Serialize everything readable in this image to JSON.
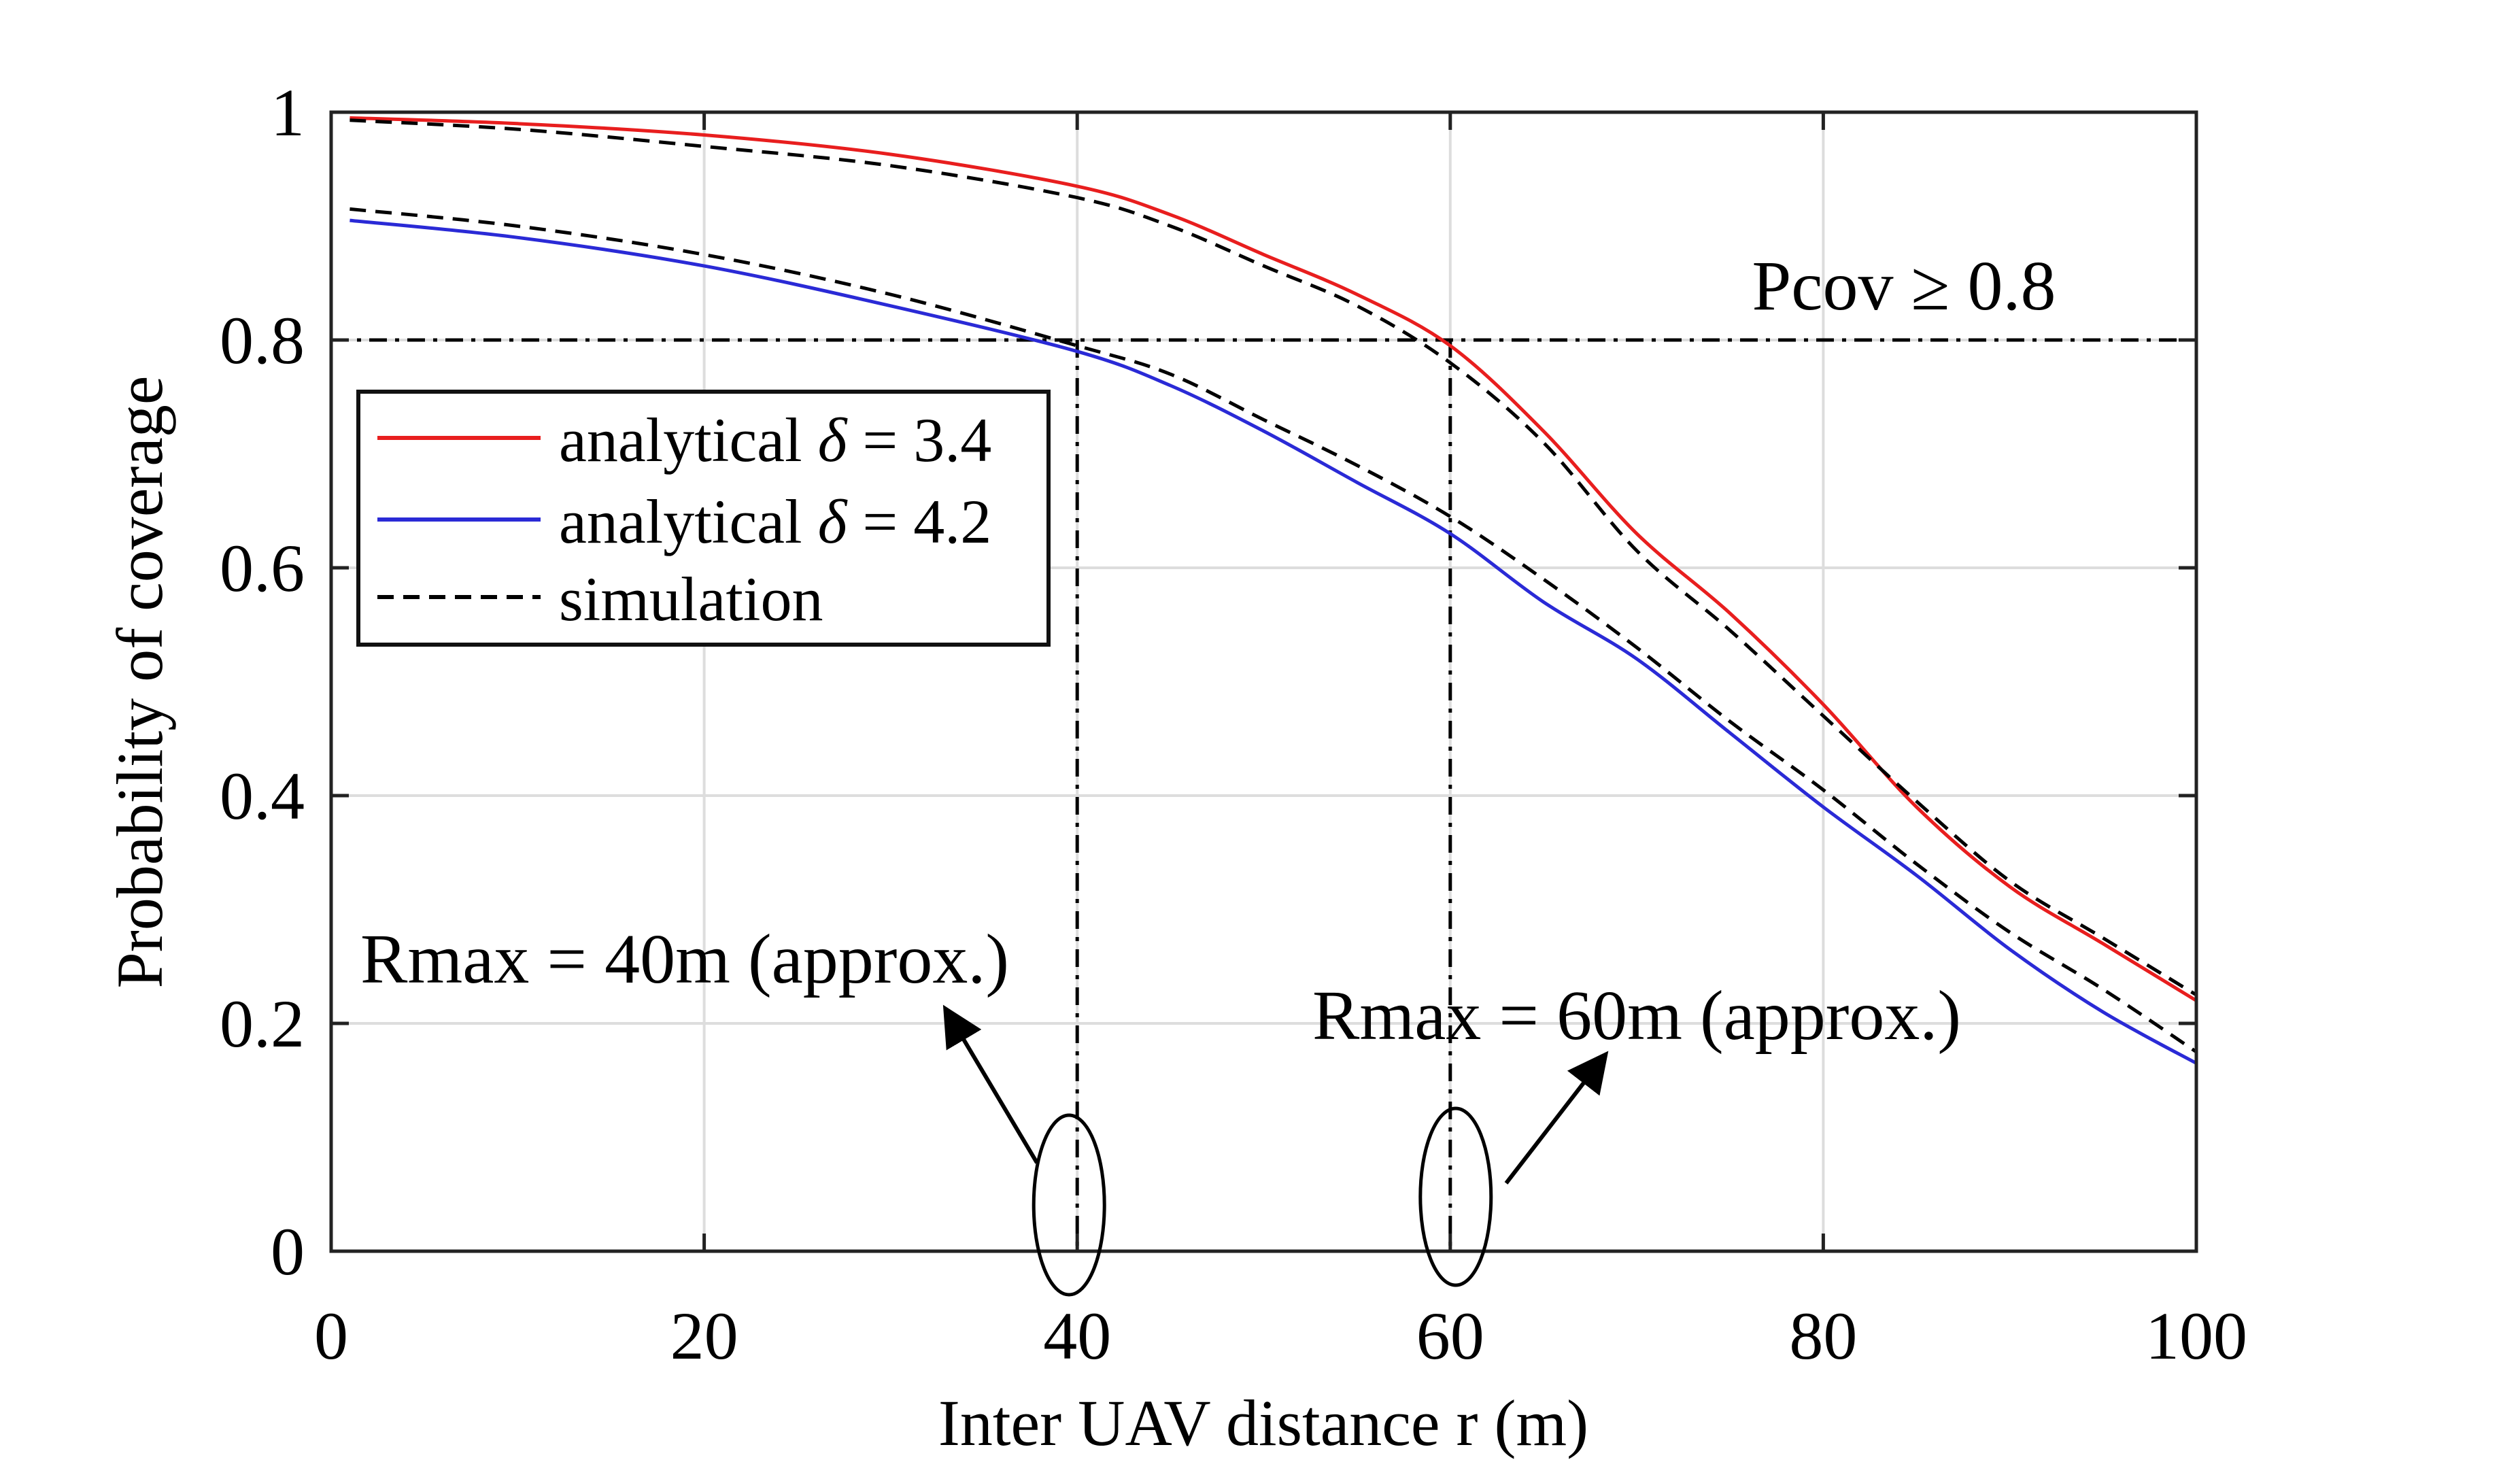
{
  "chart_data": {
    "type": "line",
    "xlabel": "Inter UAV distance r (m)",
    "ylabel": "Probability of coverage",
    "xlim": [
      0,
      100
    ],
    "ylim": [
      0,
      1
    ],
    "xticks": [
      0,
      20,
      40,
      60,
      80,
      100
    ],
    "xtick_labels": [
      "0",
      "20",
      "40",
      "60",
      "80",
      "100"
    ],
    "yticks": [
      0,
      0.2,
      0.4,
      0.6,
      0.8,
      1
    ],
    "ytick_labels": [
      "0",
      "0.2",
      "0.4",
      "0.6",
      "0.8",
      "1"
    ],
    "grid": true,
    "legend_position": "upper-left",
    "legend": [
      {
        "label_prefix": "analytical ",
        "label_symbol": "δ",
        "label_suffix": " = 3.4",
        "color": "#e81e1e",
        "style": "solid"
      },
      {
        "label_prefix": "analytical ",
        "label_symbol": "δ",
        "label_suffix": " = 4.2",
        "color": "#2a2ad6",
        "style": "solid"
      },
      {
        "label_prefix": "simulation",
        "label_symbol": "",
        "label_suffix": "",
        "color": "#000000",
        "style": "dashed"
      }
    ],
    "series": [
      {
        "name": "analytical δ = 3.4",
        "color": "#e81e1e",
        "style": "solid",
        "x": [
          1,
          10,
          20,
          30,
          40,
          45,
          50,
          55,
          60,
          65,
          70,
          75,
          80,
          85,
          90,
          95,
          100
        ],
        "y": [
          0.995,
          0.99,
          0.98,
          0.963,
          0.935,
          0.91,
          0.875,
          0.84,
          0.795,
          0.72,
          0.63,
          0.56,
          0.48,
          0.39,
          0.32,
          0.27,
          0.22
        ]
      },
      {
        "name": "analytical δ = 4.2",
        "color": "#2a2ad6",
        "style": "solid",
        "x": [
          1,
          10,
          20,
          30,
          40,
          45,
          50,
          55,
          60,
          65,
          70,
          75,
          80,
          85,
          90,
          95,
          100
        ],
        "y": [
          0.905,
          0.89,
          0.865,
          0.83,
          0.79,
          0.76,
          0.72,
          0.675,
          0.63,
          0.57,
          0.52,
          0.455,
          0.39,
          0.33,
          0.265,
          0.21,
          0.165
        ]
      },
      {
        "name": "simulation (δ = 3.4)",
        "color": "#000000",
        "style": "dashed",
        "x": [
          1,
          10,
          20,
          30,
          40,
          45,
          50,
          55,
          60,
          65,
          70,
          75,
          80,
          85,
          90,
          95,
          100
        ],
        "y": [
          0.993,
          0.985,
          0.97,
          0.953,
          0.925,
          0.9,
          0.865,
          0.83,
          0.78,
          0.71,
          0.615,
          0.545,
          0.47,
          0.395,
          0.325,
          0.275,
          0.225
        ]
      },
      {
        "name": "simulation (δ = 4.2)",
        "color": "#000000",
        "style": "dashed",
        "x": [
          1,
          10,
          20,
          30,
          40,
          45,
          50,
          55,
          60,
          65,
          70,
          75,
          80,
          85,
          90,
          95,
          100
        ],
        "y": [
          0.915,
          0.9,
          0.875,
          0.84,
          0.795,
          0.77,
          0.73,
          0.69,
          0.645,
          0.59,
          0.53,
          0.465,
          0.405,
          0.34,
          0.28,
          0.23,
          0.175
        ]
      }
    ],
    "threshold": {
      "y": 0.8,
      "label": "Pcov ≥ 0.8",
      "style": "dash-dot"
    },
    "vertical_markers": [
      {
        "x": 40,
        "style": "dash-dot"
      },
      {
        "x": 60,
        "style": "dash-dot"
      }
    ],
    "annotations": [
      {
        "text": "Rmax = 40m (approx.)",
        "points_to_x": 40
      },
      {
        "text": "Rmax = 60m (approx.)",
        "points_to_x": 60
      }
    ]
  }
}
